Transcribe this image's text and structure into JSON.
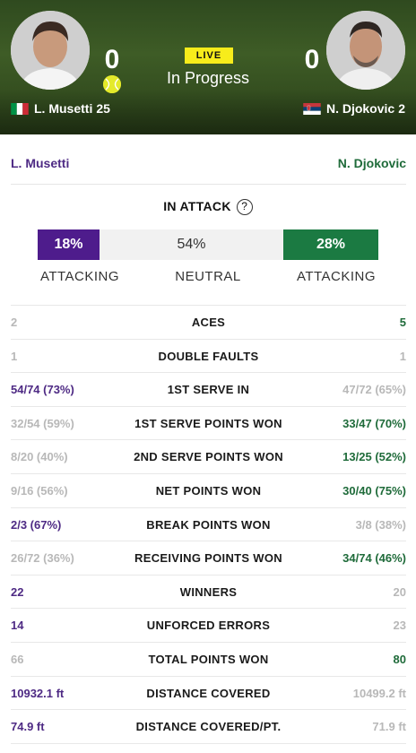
{
  "header": {
    "live_label": "LIVE",
    "status": "In Progress",
    "left": {
      "score": "0",
      "name": "L. Musetti",
      "seed": "25",
      "flag": "italy-flag",
      "serving": true
    },
    "right": {
      "score": "0",
      "name": "N. Djokovic",
      "seed": "2",
      "flag": "serbia-flag",
      "serving": false
    }
  },
  "names": {
    "left": "L. Musetti",
    "right": "N. Djokovic",
    "left_color": "#4e2a84",
    "right_color": "#1f6b3a"
  },
  "attack": {
    "title": "IN ATTACK",
    "help_icon": "question-circle-icon",
    "left_pct": "18%",
    "neutral_pct": "54%",
    "right_pct": "28%",
    "left_label": "ATTACKING",
    "neutral_label": "NEUTRAL",
    "right_label": "ATTACKING"
  },
  "stats": [
    {
      "label": "ACES",
      "left": "2",
      "right": "5",
      "winner": "right"
    },
    {
      "label": "DOUBLE FAULTS",
      "left": "1",
      "right": "1",
      "winner": "none"
    },
    {
      "label": "1ST SERVE IN",
      "left": "54/74 (73%)",
      "right": "47/72 (65%)",
      "winner": "left"
    },
    {
      "label": "1ST SERVE POINTS WON",
      "left": "32/54 (59%)",
      "right": "33/47 (70%)",
      "winner": "right"
    },
    {
      "label": "2ND SERVE POINTS WON",
      "left": "8/20 (40%)",
      "right": "13/25 (52%)",
      "winner": "right"
    },
    {
      "label": "NET POINTS WON",
      "left": "9/16 (56%)",
      "right": "30/40 (75%)",
      "winner": "right"
    },
    {
      "label": "BREAK POINTS WON",
      "left": "2/3 (67%)",
      "right": "3/8 (38%)",
      "winner": "left"
    },
    {
      "label": "RECEIVING POINTS WON",
      "left": "26/72 (36%)",
      "right": "34/74 (46%)",
      "winner": "right"
    },
    {
      "label": "WINNERS",
      "left": "22",
      "right": "20",
      "winner": "left"
    },
    {
      "label": "UNFORCED ERRORS",
      "left": "14",
      "right": "23",
      "winner": "left"
    },
    {
      "label": "TOTAL POINTS WON",
      "left": "66",
      "right": "80",
      "winner": "right"
    },
    {
      "label": "DISTANCE COVERED",
      "left": "10932.1 ft",
      "right": "10499.2 ft",
      "winner": "left"
    },
    {
      "label": "DISTANCE COVERED/PT.",
      "left": "74.9 ft",
      "right": "71.9 ft",
      "winner": "left"
    }
  ]
}
